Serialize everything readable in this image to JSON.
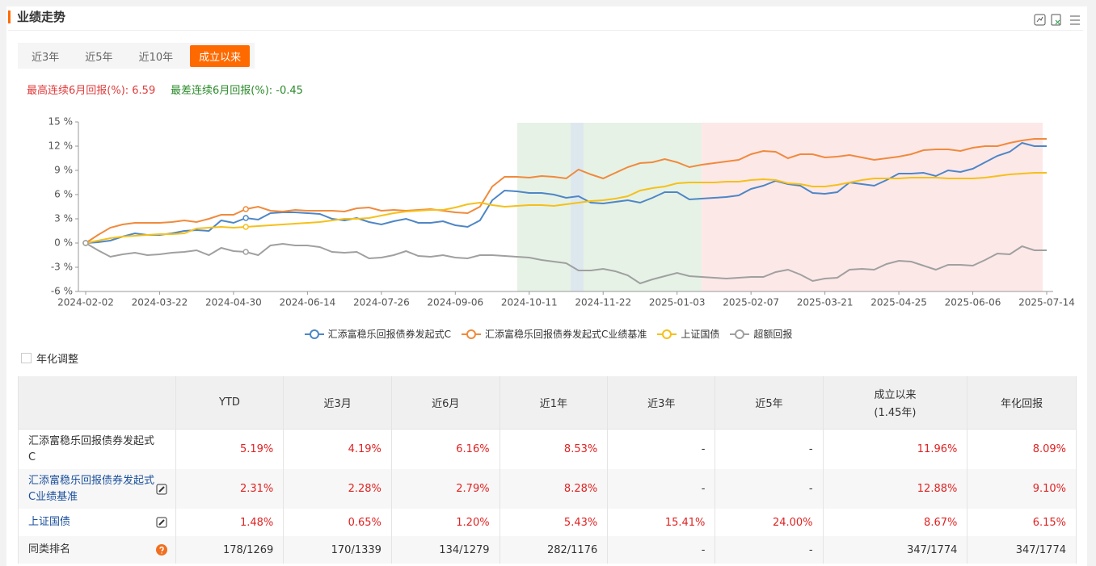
{
  "header": {
    "title": "业绩走势"
  },
  "tabs": [
    "近3年",
    "近5年",
    "近10年",
    "成立以来"
  ],
  "stats": {
    "best": "最高连续6月回报(%): 6.59",
    "worst": "最差连续6月回报(%): -0.45"
  },
  "chart_data": {
    "type": "line",
    "categories": [
      "2024-02-02",
      null,
      null,
      null,
      null,
      null,
      "2024-03-22",
      null,
      null,
      null,
      null,
      null,
      "2024-04-30",
      null,
      null,
      null,
      null,
      null,
      "2024-06-14",
      null,
      null,
      null,
      null,
      null,
      "2024-07-26",
      null,
      null,
      null,
      null,
      null,
      "2024-09-06",
      null,
      null,
      null,
      null,
      null,
      "2024-10-11",
      null,
      null,
      null,
      null,
      null,
      "2024-11-22",
      null,
      null,
      null,
      null,
      null,
      "2025-01-03",
      null,
      null,
      null,
      null,
      null,
      "2025-02-07",
      null,
      null,
      null,
      null,
      null,
      "2025-03-21",
      null,
      null,
      null,
      null,
      null,
      "2025-04-25",
      null,
      null,
      null,
      null,
      null,
      "2025-06-06",
      null,
      null,
      null,
      null,
      null,
      "2025-07-14"
    ],
    "ylim": [
      -6,
      15
    ],
    "yticks": [
      {
        "value": -6,
        "label": "-6 %"
      },
      {
        "value": -3,
        "label": "-3 %"
      },
      {
        "value": 0,
        "label": "0 %"
      },
      {
        "value": 3,
        "label": "3 %"
      },
      {
        "value": 6,
        "label": "6 %"
      },
      {
        "value": 9,
        "label": "9 %"
      },
      {
        "value": 12,
        "label": "12 %"
      },
      {
        "value": 15,
        "label": "15 %"
      }
    ],
    "grid": false,
    "series": [
      {
        "name": "汇添富稳乐回报债券发起式C",
        "color": "#4e86c6",
        "values": [
          0,
          0.1,
          0.3,
          0.8,
          1.2,
          1.0,
          1.0,
          1.2,
          1.5,
          1.6,
          1.5,
          2.8,
          2.5,
          3.1,
          2.9,
          3.7,
          3.8,
          3.8,
          3.7,
          3.6,
          3.0,
          2.8,
          3.1,
          2.6,
          2.3,
          2.7,
          3.0,
          2.5,
          2.5,
          2.7,
          2.2,
          2.0,
          2.8,
          5.3,
          6.5,
          6.4,
          6.2,
          6.2,
          6.0,
          5.6,
          5.8,
          5.0,
          4.9,
          5.1,
          5.3,
          5.0,
          5.6,
          6.3,
          6.3,
          5.4,
          5.5,
          5.6,
          5.7,
          5.9,
          6.7,
          7.1,
          7.7,
          7.3,
          7.1,
          6.2,
          6.1,
          6.3,
          7.5,
          7.3,
          7.1,
          7.8,
          8.6,
          8.6,
          8.7,
          8.3,
          9.0,
          8.8,
          9.2,
          10.0,
          10.8,
          11.3,
          12.4,
          12.0,
          12.0
        ]
      },
      {
        "name": "汇添富稳乐回报债券发起式C业绩基准",
        "color": "#f08a3c",
        "values": [
          0,
          1.0,
          1.9,
          2.3,
          2.5,
          2.5,
          2.5,
          2.6,
          2.8,
          2.6,
          3.0,
          3.5,
          3.5,
          4.2,
          4.5,
          4.0,
          3.9,
          4.1,
          4.0,
          4.0,
          4.0,
          3.9,
          4.3,
          4.4,
          4.0,
          4.1,
          4.0,
          4.1,
          4.2,
          4.0,
          3.8,
          3.7,
          4.5,
          7.0,
          8.2,
          8.2,
          8.1,
          8.3,
          8.2,
          8.0,
          9.1,
          8.5,
          8.0,
          8.7,
          9.4,
          9.9,
          10.0,
          10.4,
          10.0,
          9.4,
          9.7,
          9.9,
          10.1,
          10.3,
          11.0,
          11.4,
          11.3,
          10.5,
          11.0,
          11.0,
          10.6,
          10.7,
          10.9,
          10.6,
          10.3,
          10.5,
          10.7,
          11.0,
          11.5,
          11.6,
          11.6,
          11.4,
          11.8,
          12.0,
          12.0,
          12.4,
          12.7,
          12.9,
          12.9
        ]
      },
      {
        "name": "上证国债",
        "color": "#f5c01a",
        "values": [
          0,
          0.3,
          0.6,
          0.8,
          0.9,
          1.0,
          1.1,
          1.1,
          1.2,
          1.8,
          1.9,
          2.0,
          1.9,
          2.0,
          2.1,
          2.2,
          2.3,
          2.4,
          2.5,
          2.6,
          2.8,
          3.0,
          3.0,
          3.1,
          3.4,
          3.7,
          3.9,
          4.0,
          4.1,
          4.1,
          4.4,
          4.8,
          5.0,
          4.7,
          4.5,
          4.6,
          4.7,
          4.7,
          4.6,
          4.8,
          5.0,
          5.2,
          5.3,
          5.5,
          5.8,
          6.5,
          6.8,
          7.0,
          7.4,
          7.5,
          7.5,
          7.5,
          7.6,
          7.6,
          7.8,
          7.9,
          7.8,
          7.4,
          7.3,
          7.0,
          7.0,
          7.2,
          7.5,
          7.8,
          8.0,
          8.0,
          8.0,
          8.1,
          8.1,
          8.1,
          8.0,
          8.0,
          8.0,
          8.1,
          8.3,
          8.5,
          8.6,
          8.7,
          8.7
        ]
      },
      {
        "name": "超额回报",
        "color": "#a0a0a0",
        "values": [
          0,
          -0.9,
          -1.7,
          -1.4,
          -1.2,
          -1.5,
          -1.4,
          -1.2,
          -1.1,
          -0.9,
          -1.5,
          -0.6,
          -1.0,
          -1.1,
          -1.5,
          -0.3,
          -0.1,
          -0.3,
          -0.3,
          -0.5,
          -1.1,
          -1.2,
          -1.1,
          -1.9,
          -1.8,
          -1.5,
          -1.0,
          -1.6,
          -1.7,
          -1.5,
          -1.8,
          -1.9,
          -1.5,
          -1.5,
          -1.6,
          -1.7,
          -1.8,
          -2.1,
          -2.3,
          -2.5,
          -3.4,
          -3.4,
          -3.2,
          -3.5,
          -4.0,
          -5.0,
          -4.5,
          -4.1,
          -3.7,
          -4.1,
          -4.2,
          -4.3,
          -4.4,
          -4.3,
          -4.2,
          -4.2,
          -3.6,
          -3.3,
          -3.9,
          -4.7,
          -4.4,
          -4.3,
          -3.3,
          -3.2,
          -3.3,
          -2.6,
          -2.2,
          -2.3,
          -2.8,
          -3.3,
          -2.7,
          -2.7,
          -2.8,
          -2.1,
          -1.3,
          -1.4,
          -0.4,
          -0.9,
          -0.9
        ]
      }
    ]
  },
  "options": {
    "annualize": "年化调整"
  },
  "table": {
    "header": [
      "YTD",
      "近3月",
      "近6月",
      "近1年",
      "近3年",
      "近5年",
      "成立以来",
      "(1.45年)",
      "年化回报"
    ],
    "rows": [
      {
        "name": "汇添富稳乐回报债券发起式C",
        "cells": [
          "5.19%",
          "4.19%",
          "6.16%",
          "8.53%",
          "-",
          "-",
          "11.96%",
          "8.09%"
        ]
      },
      {
        "name": "汇添富稳乐回报债券发起式C业绩基准",
        "cells": [
          "2.31%",
          "2.28%",
          "2.79%",
          "8.28%",
          "-",
          "-",
          "12.88%",
          "9.10%"
        ]
      },
      {
        "name": "上证国债",
        "cells": [
          "1.48%",
          "0.65%",
          "1.20%",
          "5.43%",
          "15.41%",
          "24.00%",
          "8.67%",
          "6.15%"
        ]
      },
      {
        "name": "同类排名",
        "cells": [
          "178/1269",
          "170/1339",
          "134/1279",
          "282/1176",
          "-",
          "-",
          "347/1774",
          "347/1774"
        ]
      }
    ]
  }
}
